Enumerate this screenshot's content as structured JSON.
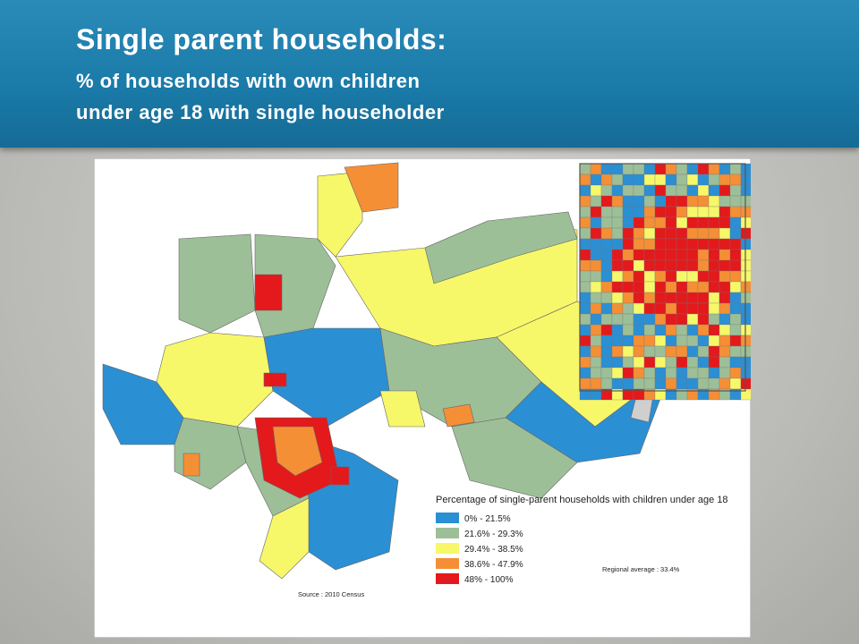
{
  "header": {
    "title": "Single parent households:",
    "subtitle_lines": [
      "% of households with own children",
      "under age 18 with single householder"
    ]
  },
  "legend": {
    "title": "Percentage of single-parent households with children under age 18",
    "items": [
      {
        "label": "0% - 21.5%",
        "color": "#2b8fd3"
      },
      {
        "label": "21.6% - 29.3%",
        "color": "#9dbf98"
      },
      {
        "label": "29.4% - 38.5%",
        "color": "#f7f76a"
      },
      {
        "label": "38.6% - 47.9%",
        "color": "#f58f35"
      },
      {
        "label": "48% - 100%",
        "color": "#e3191c"
      }
    ]
  },
  "note": "Regional average : 33.4%",
  "source": "Source : 2010 Census"
}
